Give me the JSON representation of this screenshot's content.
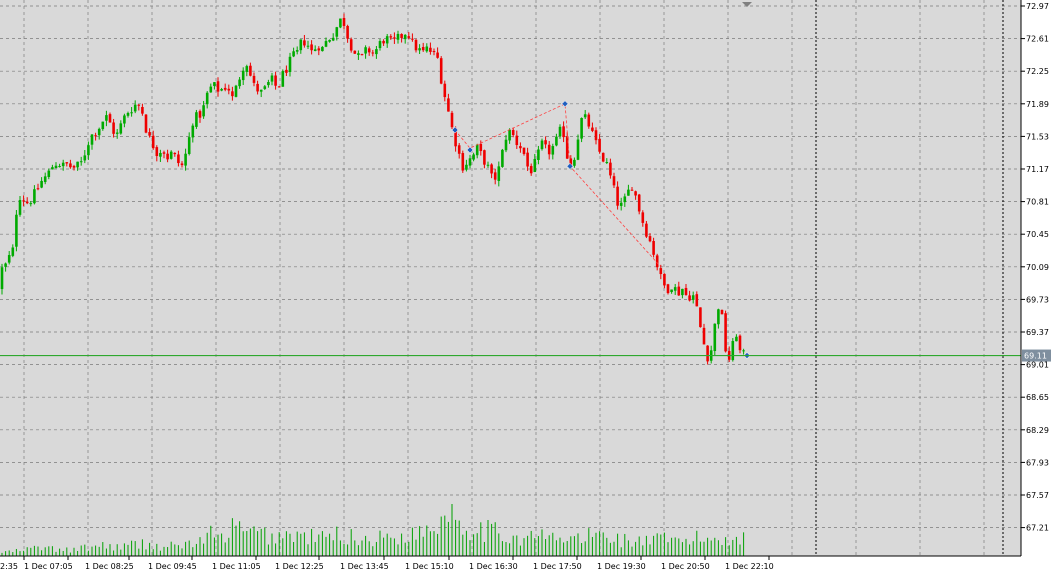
{
  "chart_data": {
    "type": "candlestick",
    "instrument": "",
    "y_ticks": [
      "72.97",
      "72.61",
      "72.25",
      "71.89",
      "71.53",
      "71.17",
      "70.81",
      "70.45",
      "70.09",
      "69.73",
      "69.37",
      "69.01",
      "68.65",
      "68.29",
      "67.93",
      "67.57",
      "67.21"
    ],
    "x_ticks": [
      "2:35",
      "1 Dec 07:05",
      "1 Dec 08:25",
      "1 Dec 09:45",
      "1 Dec 11:05",
      "1 Dec 12:25",
      "1 Dec 13:45",
      "1 Dec 15:10",
      "1 Dec 16:30",
      "1 Dec 17:50",
      "1 Dec 19:30",
      "1 Dec 20:50",
      "1 Dec 22:10"
    ],
    "ylim": [
      66.85,
      72.97
    ],
    "current_price": {
      "value": 69.11,
      "label": "69.11"
    },
    "grid": true,
    "colors": {
      "background": "#d9d9d9",
      "grid": "#7a7a7a",
      "bull": "#00aa00",
      "bear": "#ee0000",
      "volume": "#00a000",
      "price_line": "#2ea82e",
      "zigzag": "#ff4040",
      "marker": "#1f5fbf"
    },
    "price_path": [
      [
        0,
        69.85
      ],
      [
        3,
        70.05
      ],
      [
        8,
        70.1
      ],
      [
        12,
        70.2
      ],
      [
        17,
        70.3
      ],
      [
        20,
        70.9
      ],
      [
        25,
        70.85
      ],
      [
        30,
        70.8
      ],
      [
        35,
        70.85
      ],
      [
        40,
        70.95
      ],
      [
        45,
        71.05
      ],
      [
        50,
        71.1
      ],
      [
        55,
        71.2
      ],
      [
        60,
        71.25
      ],
      [
        65,
        71.2
      ],
      [
        70,
        71.22
      ],
      [
        75,
        71.18
      ],
      [
        80,
        71.2
      ],
      [
        85,
        71.25
      ],
      [
        90,
        71.45
      ],
      [
        95,
        71.55
      ],
      [
        100,
        71.6
      ],
      [
        105,
        71.7
      ],
      [
        110,
        71.75
      ],
      [
        115,
        71.6
      ],
      [
        120,
        71.55
      ],
      [
        125,
        71.7
      ],
      [
        130,
        71.8
      ],
      [
        135,
        71.85
      ],
      [
        140,
        71.9
      ],
      [
        145,
        71.8
      ],
      [
        150,
        71.55
      ],
      [
        155,
        71.45
      ],
      [
        160,
        71.35
      ],
      [
        165,
        71.4
      ],
      [
        170,
        71.3
      ],
      [
        175,
        71.35
      ],
      [
        180,
        71.25
      ],
      [
        185,
        71.2
      ],
      [
        190,
        71.4
      ],
      [
        195,
        71.7
      ],
      [
        200,
        71.75
      ],
      [
        205,
        71.8
      ],
      [
        210,
        72.0
      ],
      [
        215,
        72.1
      ],
      [
        220,
        72.05
      ],
      [
        225,
        72.05
      ],
      [
        230,
        72.1
      ],
      [
        235,
        71.95
      ],
      [
        240,
        72.1
      ],
      [
        245,
        72.3
      ],
      [
        250,
        72.35
      ],
      [
        255,
        72.1
      ],
      [
        260,
        72.05
      ],
      [
        265,
        72.0
      ],
      [
        270,
        72.1
      ],
      [
        275,
        72.15
      ],
      [
        280,
        72.05
      ],
      [
        285,
        72.2
      ],
      [
        290,
        72.3
      ],
      [
        295,
        72.4
      ],
      [
        300,
        72.45
      ],
      [
        305,
        72.6
      ],
      [
        310,
        72.55
      ],
      [
        315,
        72.45
      ],
      [
        320,
        72.55
      ],
      [
        325,
        72.5
      ],
      [
        330,
        72.6
      ],
      [
        335,
        72.65
      ],
      [
        340,
        72.75
      ],
      [
        345,
        72.85
      ],
      [
        350,
        72.65
      ],
      [
        355,
        72.5
      ],
      [
        360,
        72.4
      ],
      [
        365,
        72.4
      ],
      [
        370,
        72.5
      ],
      [
        375,
        72.45
      ],
      [
        380,
        72.5
      ],
      [
        385,
        72.6
      ],
      [
        390,
        72.6
      ],
      [
        395,
        72.55
      ],
      [
        400,
        72.6
      ],
      [
        405,
        72.65
      ],
      [
        410,
        72.7
      ],
      [
        415,
        72.55
      ],
      [
        420,
        72.5
      ],
      [
        425,
        72.45
      ],
      [
        430,
        72.5
      ],
      [
        435,
        72.45
      ],
      [
        440,
        72.4
      ],
      [
        445,
        72.1
      ],
      [
        450,
        71.85
      ],
      [
        455,
        71.6
      ],
      [
        460,
        71.4
      ],
      [
        465,
        71.2
      ],
      [
        470,
        71.25
      ],
      [
        475,
        71.3
      ],
      [
        480,
        71.4
      ],
      [
        485,
        71.3
      ],
      [
        490,
        71.2
      ],
      [
        495,
        71.05
      ],
      [
        500,
        71.1
      ],
      [
        505,
        71.35
      ],
      [
        510,
        71.6
      ],
      [
        515,
        71.55
      ],
      [
        520,
        71.45
      ],
      [
        525,
        71.4
      ],
      [
        530,
        71.2
      ],
      [
        535,
        71.15
      ],
      [
        540,
        71.3
      ],
      [
        545,
        71.45
      ],
      [
        550,
        71.35
      ],
      [
        555,
        71.4
      ],
      [
        560,
        71.5
      ],
      [
        565,
        71.65
      ],
      [
        570,
        71.3
      ],
      [
        575,
        71.2
      ],
      [
        580,
        71.5
      ],
      [
        585,
        71.75
      ],
      [
        590,
        71.7
      ],
      [
        595,
        71.55
      ],
      [
        600,
        71.4
      ],
      [
        605,
        71.3
      ],
      [
        610,
        71.2
      ],
      [
        615,
        71.0
      ],
      [
        620,
        70.8
      ],
      [
        625,
        70.75
      ],
      [
        630,
        70.9
      ],
      [
        635,
        71.0
      ],
      [
        640,
        70.8
      ],
      [
        645,
        70.6
      ],
      [
        650,
        70.45
      ],
      [
        655,
        70.3
      ],
      [
        660,
        70.1
      ],
      [
        665,
        69.9
      ],
      [
        670,
        69.85
      ],
      [
        675,
        69.9
      ],
      [
        680,
        69.8
      ],
      [
        685,
        69.85
      ],
      [
        690,
        69.75
      ],
      [
        695,
        69.8
      ],
      [
        700,
        69.6
      ],
      [
        705,
        69.3
      ],
      [
        710,
        69.1
      ],
      [
        715,
        69.2
      ],
      [
        720,
        69.7
      ],
      [
        725,
        69.5
      ],
      [
        730,
        69.0
      ],
      [
        735,
        69.2
      ],
      [
        740,
        69.4
      ],
      [
        743,
        69.11
      ]
    ],
    "zigzag_points": [
      [
        455,
        71.6
      ],
      [
        470,
        71.4
      ],
      [
        565,
        71.89
      ],
      [
        570,
        71.2
      ],
      [
        660,
        70.1
      ]
    ],
    "markers": [
      [
        455,
        71.6
      ],
      [
        470,
        71.38
      ],
      [
        565,
        71.89
      ],
      [
        570,
        71.2
      ],
      [
        747,
        69.11
      ]
    ],
    "volume_profile": [
      [
        0,
        2
      ],
      [
        20,
        3
      ],
      [
        40,
        5
      ],
      [
        60,
        3
      ],
      [
        80,
        4
      ],
      [
        100,
        6
      ],
      [
        120,
        5
      ],
      [
        140,
        7
      ],
      [
        160,
        5
      ],
      [
        180,
        6
      ],
      [
        200,
        8
      ],
      [
        210,
        12
      ],
      [
        220,
        9
      ],
      [
        230,
        16
      ],
      [
        240,
        14
      ],
      [
        250,
        12
      ],
      [
        260,
        13
      ],
      [
        270,
        10
      ],
      [
        280,
        12
      ],
      [
        300,
        11
      ],
      [
        320,
        10
      ],
      [
        340,
        12
      ],
      [
        360,
        9
      ],
      [
        380,
        10
      ],
      [
        400,
        11
      ],
      [
        420,
        13
      ],
      [
        440,
        20
      ],
      [
        450,
        28
      ],
      [
        460,
        18
      ],
      [
        480,
        15
      ],
      [
        500,
        12
      ],
      [
        520,
        10
      ],
      [
        540,
        11
      ],
      [
        560,
        9
      ],
      [
        580,
        10
      ],
      [
        600,
        12
      ],
      [
        620,
        9
      ],
      [
        640,
        8
      ],
      [
        660,
        9
      ],
      [
        680,
        8
      ],
      [
        700,
        10
      ],
      [
        720,
        9
      ],
      [
        740,
        11
      ]
    ],
    "vertical_markers_time": [
      "1 Dec 20:50 (+)",
      "1 Dec 22:10 (+)"
    ]
  }
}
